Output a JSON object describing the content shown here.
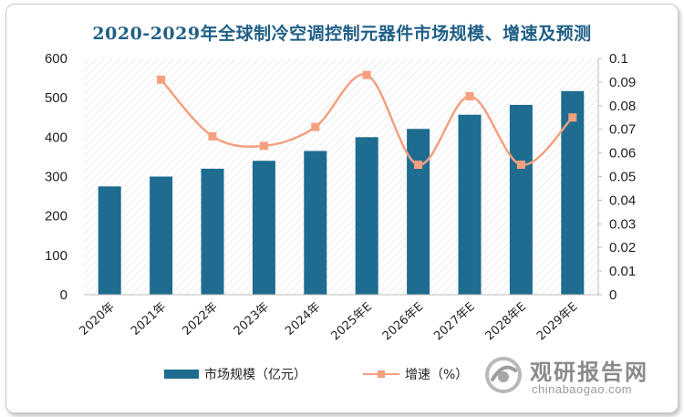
{
  "title": "2020-2029年全球制冷空调控制元器件市场规模、增速及预测",
  "legend": {
    "bar_label": "市场规模（亿元）",
    "line_label": "增速（%）"
  },
  "watermark": {
    "name_cn": "观研报告网",
    "site": "chinabaogao.com"
  },
  "colors": {
    "bar": "#1e6c8f",
    "line": "#f4a07f",
    "title": "#1f5f86"
  },
  "chart_data": {
    "type": "bar",
    "categories": [
      "2020年",
      "2021年",
      "2022年",
      "2023年",
      "2024年",
      "2025年E",
      "2026年E",
      "2027年E",
      "2028年E",
      "2029年E"
    ],
    "series": [
      {
        "name": "市场规模（亿元）",
        "type": "bar",
        "axis": "left",
        "values": [
          275,
          300,
          320,
          340,
          365,
          400,
          421,
          457,
          482,
          517
        ]
      },
      {
        "name": "增速（%）",
        "type": "line",
        "axis": "right",
        "smooth": true,
        "marker": "square",
        "values": [
          null,
          0.091,
          0.067,
          0.063,
          0.071,
          0.093,
          0.055,
          0.084,
          0.055,
          0.075
        ]
      }
    ],
    "y_left": {
      "min": 0,
      "max": 600,
      "ticks": [
        "0",
        "100",
        "200",
        "300",
        "400",
        "500",
        "600"
      ]
    },
    "y_right": {
      "min": 0,
      "max": 0.1,
      "ticks": [
        "0",
        "0.01",
        "0.02",
        "0.03",
        "0.04",
        "0.05",
        "0.06",
        "0.07",
        "0.08",
        "0.09",
        "0.1"
      ]
    },
    "grid": false,
    "legend_position": "bottom"
  }
}
